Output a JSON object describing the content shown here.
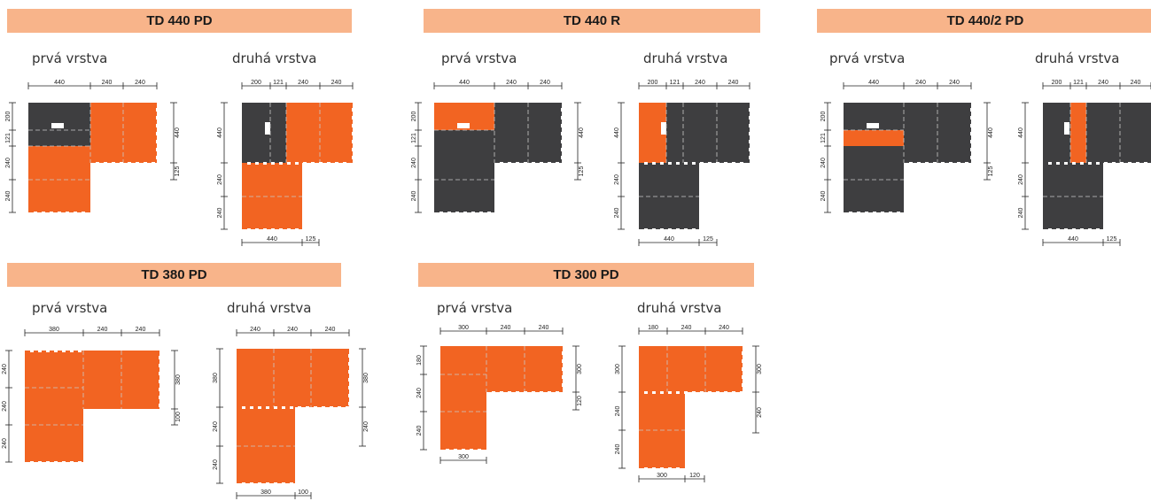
{
  "colors": {
    "orange": "#f26422",
    "gray": "#3e3e40",
    "header": "#f8b48a"
  },
  "sections": [
    {
      "title": "TD 440 PD",
      "layer1": "prvá vrstva",
      "layer2": "druhá vrstva"
    },
    {
      "title": "TD 440 R",
      "layer1": "prvá vrstva",
      "layer2": "druhá vrstva"
    },
    {
      "title": "TD 440/2 PD",
      "layer1": "prvá vrstva",
      "layer2": "druhá vrstva"
    },
    {
      "title": "TD 380 PD",
      "layer1": "prvá vrstva",
      "layer2": "druhá vrstva"
    },
    {
      "title": "TD 300 PD",
      "layer1": "prvá vrstva",
      "layer2": "druhá vrstva"
    }
  ],
  "dimensions": {
    "td440_l1_top": [
      "440",
      "240",
      "240"
    ],
    "td440_l1_left": [
      "200",
      "121",
      "240",
      "240"
    ],
    "td440_l1_right": [
      "440",
      "125"
    ],
    "td440_l2_top": [
      "200",
      "121",
      "240",
      "240"
    ],
    "td440_l2_left": [
      "440",
      "240",
      "240"
    ],
    "td440_l2_bottom": [
      "440",
      "125"
    ],
    "td380_l1_top": [
      "380",
      "240",
      "240"
    ],
    "td380_l1_left": [
      "240",
      "240",
      "240"
    ],
    "td380_l1_right": [
      "380",
      "100"
    ],
    "td380_l2_top": [
      "240",
      "240",
      "240"
    ],
    "td380_l2_left": [
      "380",
      "240",
      "240"
    ],
    "td380_l2_right": [
      "380",
      "240"
    ],
    "td380_l2_bottom": [
      "380",
      "100"
    ],
    "td300_l1_top": [
      "300",
      "240",
      "240"
    ],
    "td300_l1_left": [
      "180",
      "240",
      "240"
    ],
    "td300_l1_right": [
      "300",
      "120"
    ],
    "td300_l1_bottom": [
      "300"
    ],
    "td300_l2_top": [
      "180",
      "240",
      "240"
    ],
    "td300_l2_left": [
      "300",
      "240",
      "240"
    ],
    "td300_l2_right": [
      "300",
      "240"
    ],
    "td300_l2_bottom": [
      "300",
      "120"
    ]
  }
}
